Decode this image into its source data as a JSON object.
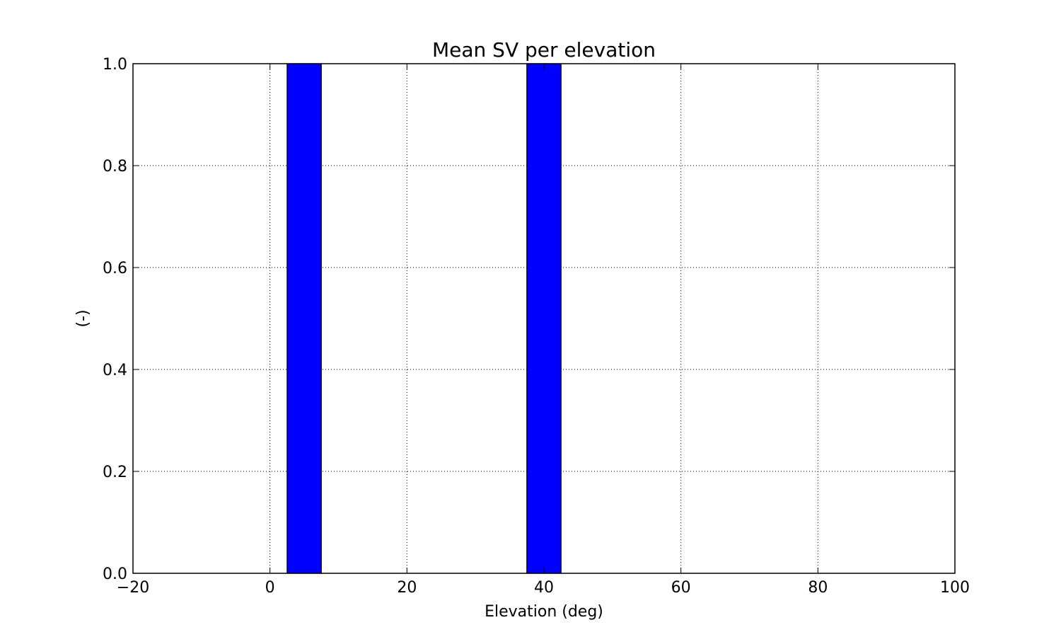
{
  "chart_data": {
    "type": "bar",
    "title": "Mean SV per elevation",
    "xlabel": "Elevation (deg)",
    "ylabel": "(-)",
    "xlim": [
      -20,
      100
    ],
    "ylim": [
      0,
      1.0
    ],
    "xticks": [
      "−20",
      "0",
      "20",
      "40",
      "60",
      "80",
      "100"
    ],
    "xtick_values": [
      -20,
      0,
      20,
      40,
      60,
      80,
      100
    ],
    "yticks": [
      "0.0",
      "0.2",
      "0.4",
      "0.6",
      "0.8",
      "1.0"
    ],
    "ytick_values": [
      0,
      0.2,
      0.4,
      0.6,
      0.8,
      1.0
    ],
    "grid": true,
    "bar_color": "#0000ff",
    "bars": [
      {
        "x_start": 2.5,
        "x_end": 7.5,
        "value": 1.0
      },
      {
        "x_start": 37.5,
        "x_end": 42.5,
        "value": 1.0
      }
    ]
  }
}
